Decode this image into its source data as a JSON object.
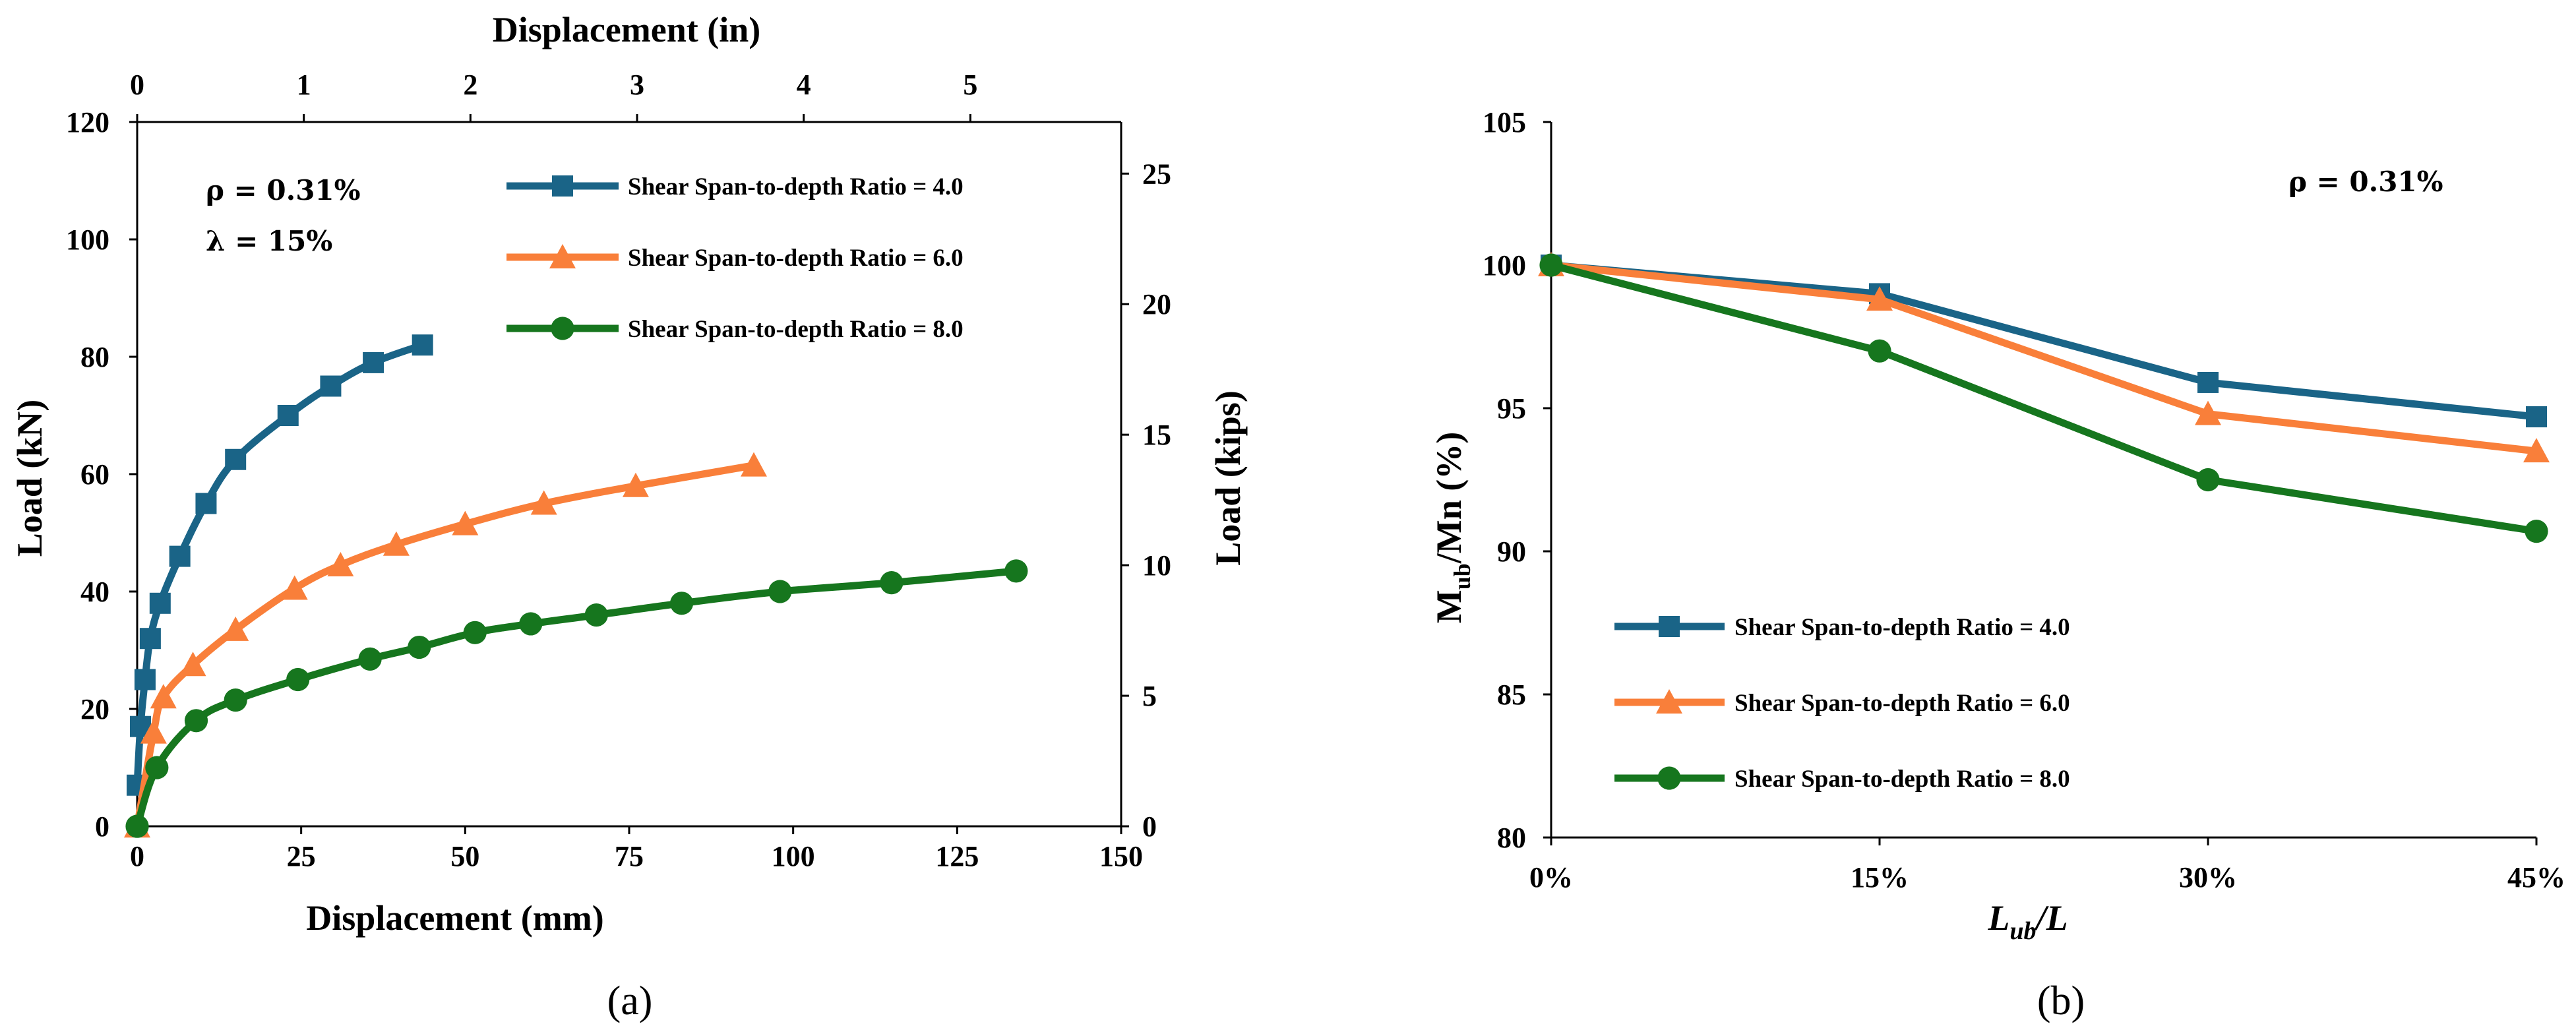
{
  "colors": {
    "series1": "#1a6487",
    "series2": "#f97f3a",
    "series3": "#16761e",
    "axis": "#000000"
  },
  "chart_data": [
    {
      "panel_label": "(a)",
      "type": "line",
      "xlabel": "Displacement (mm)",
      "ylabel": "Load (kN)",
      "x2label": "Displacement (in)",
      "y2label": "Load (kips)",
      "xlim": [
        0,
        150
      ],
      "ylim": [
        0,
        120
      ],
      "x2lim": [
        0,
        5.905
      ],
      "y2lim": [
        0,
        26.977
      ],
      "xticks": [
        "0",
        "25",
        "50",
        "75",
        "100",
        "125",
        "150"
      ],
      "yticks": [
        "0",
        "20",
        "40",
        "60",
        "80",
        "100",
        "120"
      ],
      "x2ticks": [
        "0",
        "1",
        "2",
        "3",
        "4",
        "5"
      ],
      "y2ticks": [
        "0",
        "5",
        "10",
        "15",
        "20",
        "25"
      ],
      "grid": false,
      "legend": "top-right",
      "annotations": [
        "ρ = 0.31%",
        "λ = 15%"
      ],
      "series": [
        {
          "name": "Shear Span-to-depth Ratio = 4.0",
          "marker": "square",
          "x": [
            0,
            0.5,
            1.2,
            2,
            3.5,
            6.5,
            10.5,
            15,
            23,
            29.5,
            36,
            43.5
          ],
          "y": [
            7,
            17,
            25,
            32,
            38,
            46,
            55,
            62.5,
            70,
            75,
            79,
            82
          ]
        },
        {
          "name": "Shear Span-to-depth Ratio = 6.0",
          "marker": "triangle",
          "x": [
            0,
            2.5,
            4,
            8.5,
            15,
            24,
            31,
            39.5,
            50,
            62,
            76,
            94
          ],
          "y": [
            0,
            16,
            22,
            27.5,
            33.5,
            40.5,
            44.5,
            48,
            51.5,
            55,
            58,
            61.5
          ]
        },
        {
          "name": "Shear Span-to-depth Ratio = 8.0",
          "marker": "circle",
          "x": [
            0,
            3,
            9,
            15,
            24.5,
            35.5,
            43,
            51.5,
            60,
            70,
            83,
            98,
            115,
            134
          ],
          "y": [
            0,
            10,
            18,
            21.5,
            25,
            28.5,
            30.5,
            33,
            34.5,
            36,
            38,
            40,
            41.5,
            43.5
          ]
        }
      ]
    },
    {
      "panel_label": "(b)",
      "type": "line",
      "xlabel": "Lᵤᵦ/L",
      "ylabel": "Mub/Mn (%)",
      "categories": [
        "0%",
        "15%",
        "30%",
        "45%"
      ],
      "ylim": [
        80,
        105
      ],
      "yticks": [
        "80",
        "85",
        "90",
        "95",
        "100",
        "105"
      ],
      "grid": false,
      "legend": "bottom-left",
      "annotations": [
        "ρ = 0.31%"
      ],
      "series": [
        {
          "name": "Shear Span-to-depth Ratio = 4.0",
          "marker": "square",
          "values": [
            100,
            99,
            95.9,
            94.7
          ]
        },
        {
          "name": "Shear Span-to-depth Ratio = 6.0",
          "marker": "triangle",
          "values": [
            100,
            98.8,
            94.8,
            93.5
          ]
        },
        {
          "name": "Shear Span-to-depth Ratio = 8.0",
          "marker": "circle",
          "values": [
            100,
            97,
            92.5,
            90.7
          ]
        }
      ]
    }
  ]
}
